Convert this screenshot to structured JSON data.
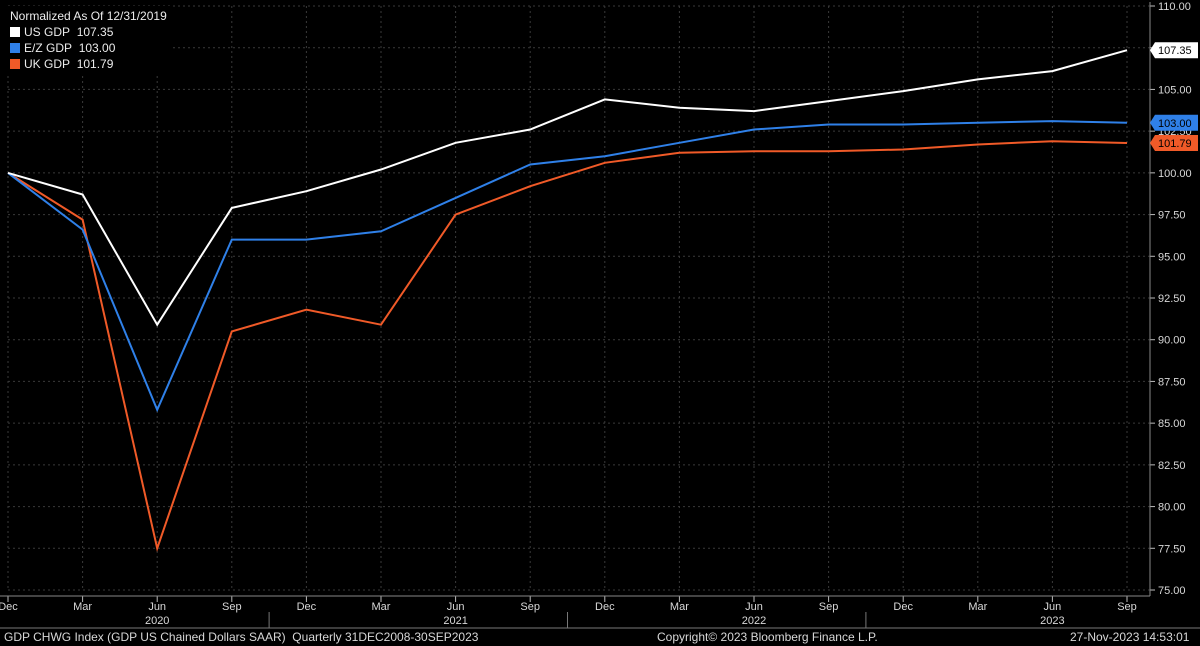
{
  "footer": {
    "source": "GDP CHWG Index (GDP US Chained Dollars SAAR)  Quarterly 31DEC2008-30SEP2023",
    "copyright": "Copyright© 2023 Bloomberg Finance L.P.",
    "timestamp": "27-Nov-2023 14:53:01"
  },
  "chart_data": {
    "type": "line",
    "title": "Normalized As Of 12/31/2019",
    "x": [
      "Dec 2019",
      "Mar 2020",
      "Jun 2020",
      "Sep 2020",
      "Dec 2020",
      "Mar 2021",
      "Jun 2021",
      "Sep 2021",
      "Dec 2021",
      "Mar 2022",
      "Jun 2022",
      "Sep 2022",
      "Dec 2022",
      "Mar 2023",
      "Jun 2023",
      "Sep 2023"
    ],
    "x_tick_labels": [
      "Dec",
      "Mar",
      "Jun",
      "Sep",
      "Dec",
      "Mar",
      "Jun",
      "Sep",
      "Dec",
      "Mar",
      "Jun",
      "Sep",
      "Dec",
      "Mar",
      "Jun",
      "Sep"
    ],
    "year_labels": [
      {
        "label": "2020",
        "at": "Jun 2020"
      },
      {
        "label": "2021",
        "at": "Jun 2021"
      },
      {
        "label": "2022",
        "at": "Jun 2022"
      },
      {
        "label": "2023",
        "at": "Jun 2023"
      }
    ],
    "ylim": [
      75.0,
      110.0
    ],
    "y_ticks": [
      "75.00",
      "77.50",
      "80.00",
      "82.50",
      "85.00",
      "87.50",
      "90.00",
      "92.50",
      "95.00",
      "97.50",
      "100.00",
      "102.50",
      "105.00",
      "107.50",
      "110.00"
    ],
    "y_axis_side": "right",
    "grid": true,
    "legend": "top-left",
    "series": [
      {
        "name": "US GDP",
        "last_label": "107.35",
        "color": "#ffffff",
        "values": [
          100.0,
          98.7,
          90.9,
          97.9,
          98.9,
          100.2,
          101.8,
          102.6,
          104.4,
          103.9,
          103.7,
          104.3,
          104.9,
          105.6,
          106.1,
          107.35
        ]
      },
      {
        "name": "E/Z GDP",
        "last_label": "103.00",
        "color": "#2f80e8",
        "values": [
          100.0,
          96.6,
          85.8,
          96.0,
          96.0,
          96.5,
          98.5,
          100.5,
          101.0,
          101.8,
          102.6,
          102.9,
          102.9,
          103.0,
          103.1,
          103.0
        ]
      },
      {
        "name": "UK GDP",
        "last_label": "101.79",
        "color": "#f05a28",
        "values": [
          100.0,
          97.2,
          77.5,
          90.5,
          91.8,
          90.9,
          97.5,
          99.2,
          100.6,
          101.2,
          101.3,
          101.3,
          101.4,
          101.7,
          101.9,
          101.79
        ]
      }
    ]
  }
}
